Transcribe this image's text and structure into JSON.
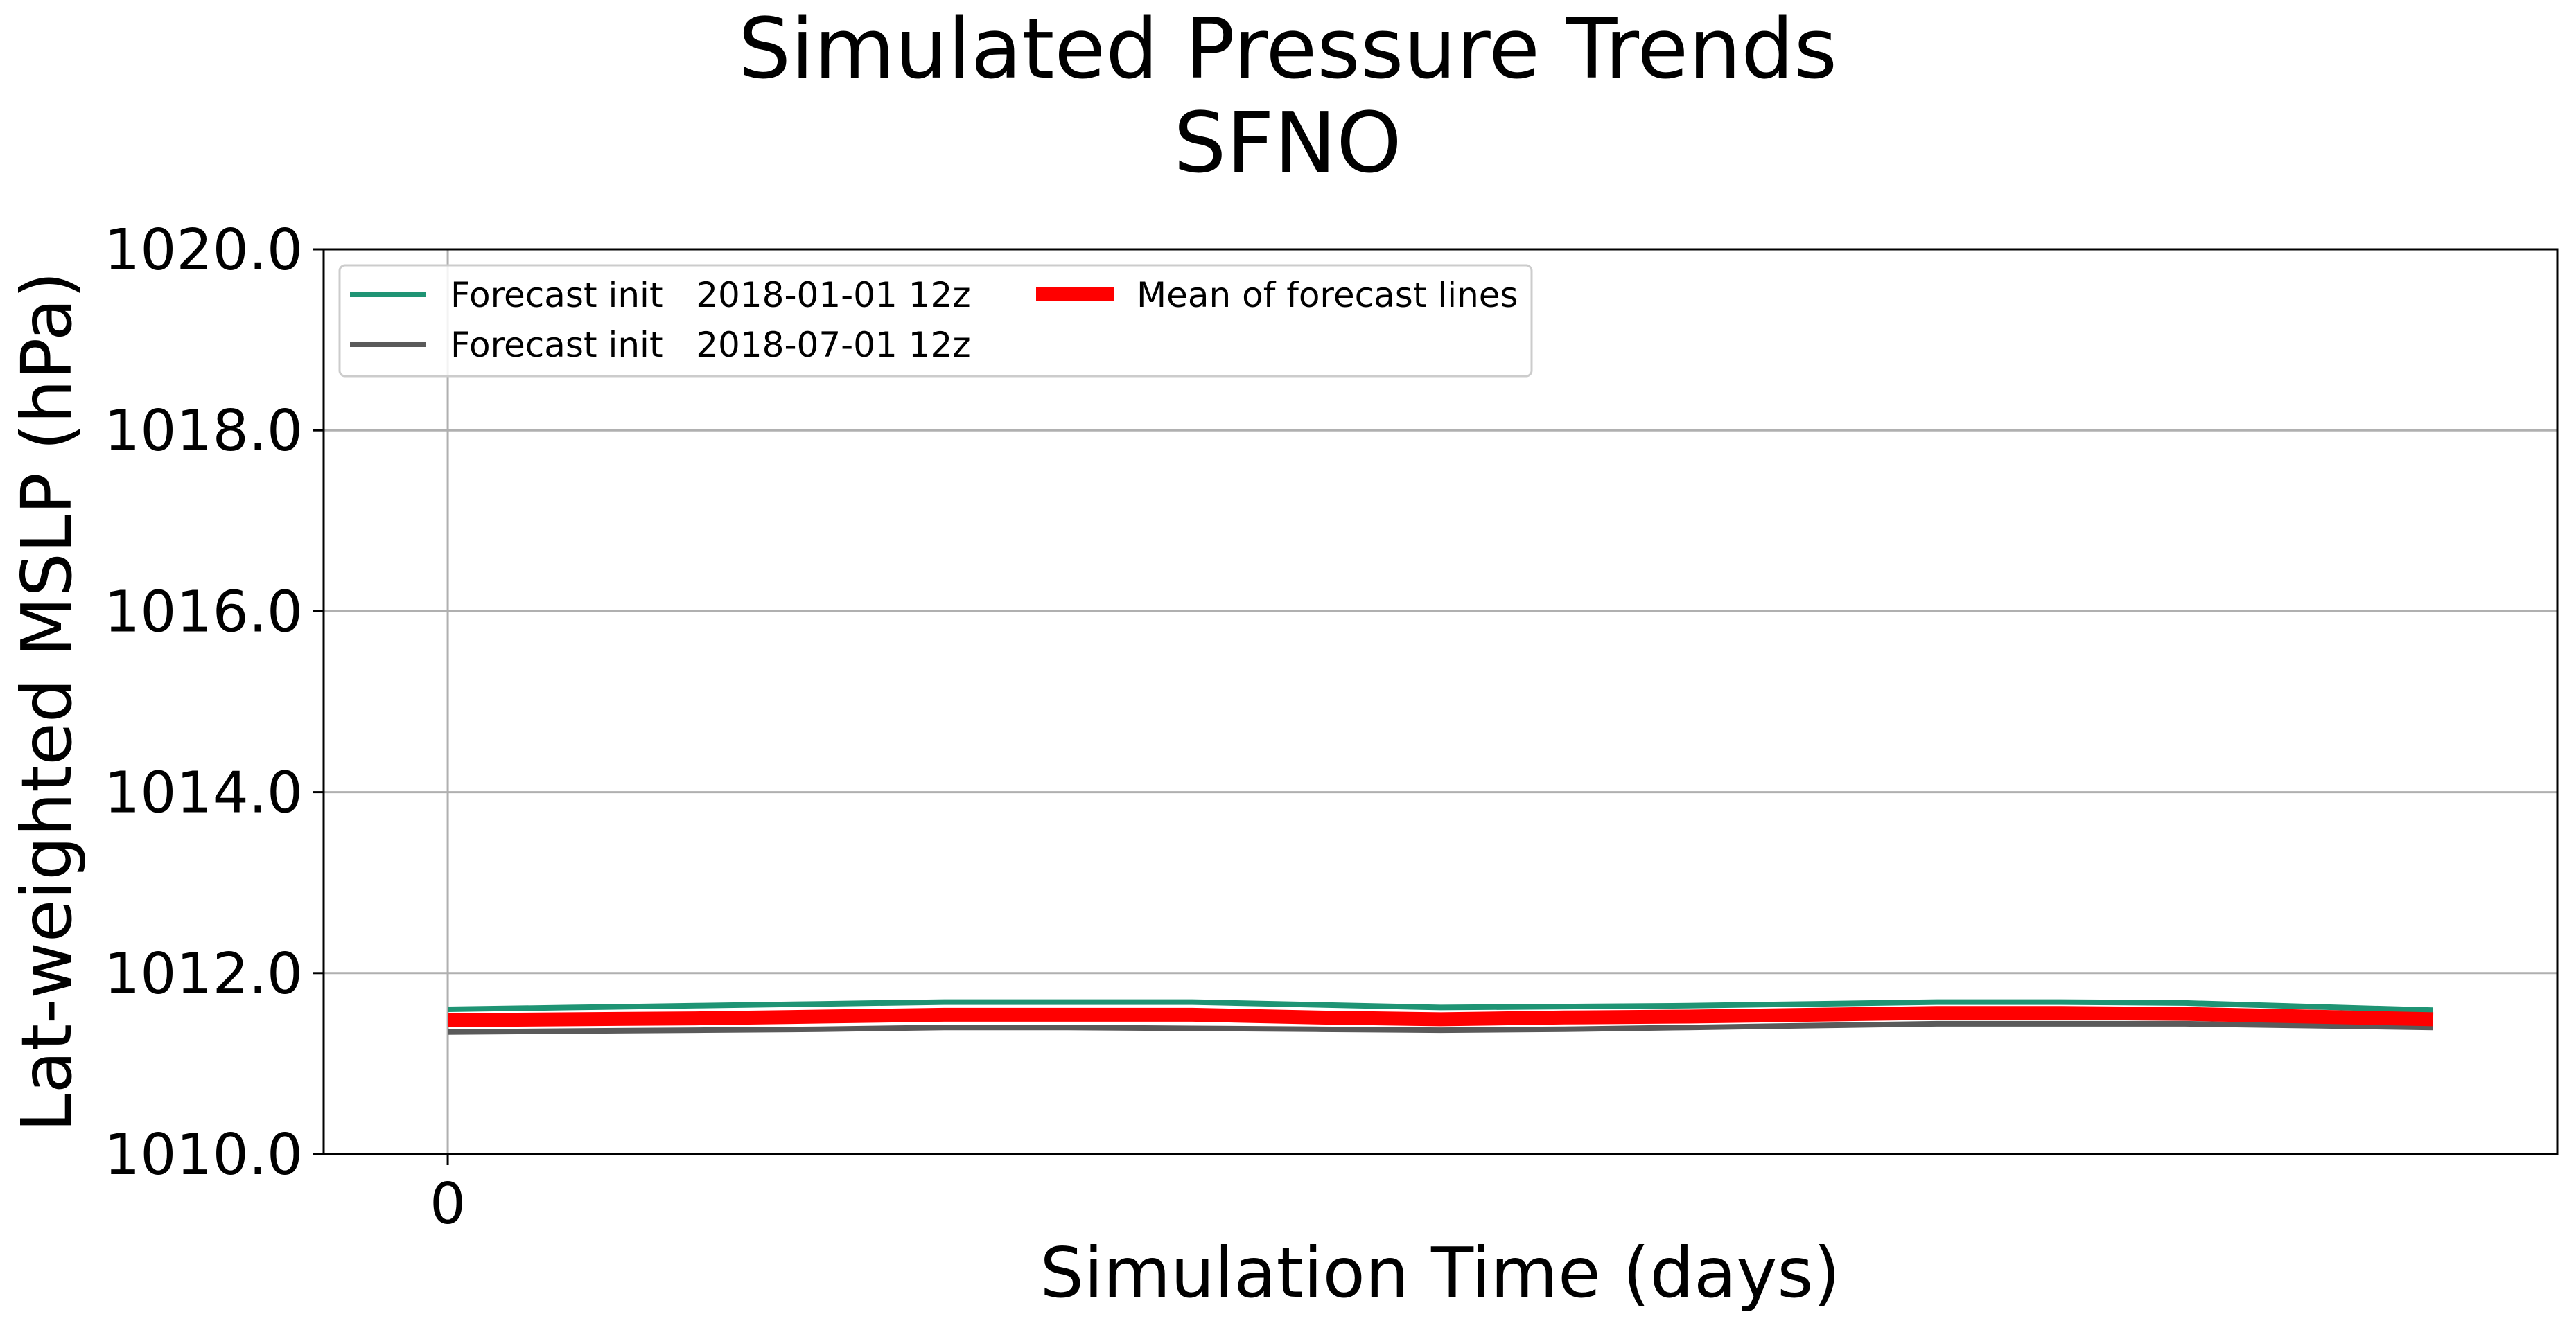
{
  "chart_data": {
    "type": "line",
    "title": "Simulated Pressure Trends",
    "subtitle": "SFNO",
    "xlabel": "Simulation Time (days)",
    "ylabel": "Lat-weighted MSLP (hPa)",
    "xlim": [
      -0.25,
      4.25
    ],
    "ylim": [
      1010.0,
      1020.0
    ],
    "xticks": [
      0
    ],
    "xtick_labels": [
      "0"
    ],
    "yticks": [
      1010.0,
      1012.0,
      1014.0,
      1016.0,
      1018.0,
      1020.0
    ],
    "ytick_labels": [
      "1010.0",
      "1012.0",
      "1014.0",
      "1016.0",
      "1018.0",
      "1020.0"
    ],
    "grid": true,
    "legend_position": "top-left",
    "x": [
      0,
      0.25,
      0.5,
      0.75,
      1.0,
      1.25,
      1.5,
      1.75,
      2.0,
      2.25,
      2.5,
      2.75,
      3.0,
      3.25,
      3.5,
      3.75,
      4.0
    ],
    "series": [
      {
        "name": "Forecast init   2018-01-01 12z",
        "color": "#1f9474",
        "values": [
          1011.6,
          1011.62,
          1011.64,
          1011.66,
          1011.68,
          1011.68,
          1011.68,
          1011.65,
          1011.62,
          1011.63,
          1011.64,
          1011.66,
          1011.68,
          1011.68,
          1011.67,
          1011.63,
          1011.59
        ]
      },
      {
        "name": "Forecast init   2018-07-01 12z",
        "color": "#5a5a5a",
        "values": [
          1011.35,
          1011.36,
          1011.37,
          1011.38,
          1011.4,
          1011.4,
          1011.39,
          1011.38,
          1011.37,
          1011.38,
          1011.4,
          1011.42,
          1011.44,
          1011.44,
          1011.44,
          1011.42,
          1011.4
        ]
      },
      {
        "name": "Mean of forecast lines",
        "color": "#ff0000",
        "values": [
          1011.48,
          1011.49,
          1011.5,
          1011.52,
          1011.54,
          1011.54,
          1011.54,
          1011.51,
          1011.49,
          1011.51,
          1011.52,
          1011.54,
          1011.56,
          1011.56,
          1011.55,
          1011.52,
          1011.49
        ]
      }
    ]
  }
}
